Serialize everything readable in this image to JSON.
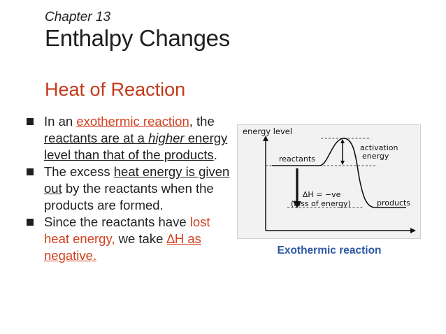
{
  "header": {
    "chapter": "Chapter 13",
    "title": "Enthalpy Changes",
    "subtitle": "Heat of Reaction"
  },
  "bullets": [
    {
      "p1": "In an ",
      "p2": "exothermic reaction",
      "p3": ", the ",
      "p4": "reactants are at a ",
      "p5": "higher",
      "p6": " energy level than that of the products",
      "p7": "."
    },
    {
      "p1": "The excess ",
      "p2": "heat energy is given out",
      "p3": " by the reactants when the products are formed."
    },
    {
      "p1": "Since the reactants have ",
      "p2": "lost heat energy,",
      "p3": " we take ",
      "p4": "∆H as negative."
    }
  ],
  "diagram": {
    "y_axis_label": "energy level",
    "reactants_label": "reactants",
    "products_label": "products",
    "activation_label_1": "activation",
    "activation_label_2": "energy",
    "delta_h_label": "∆H = −ve",
    "loss_label": "(loss of energy)",
    "caption": "Exothermic reaction"
  }
}
